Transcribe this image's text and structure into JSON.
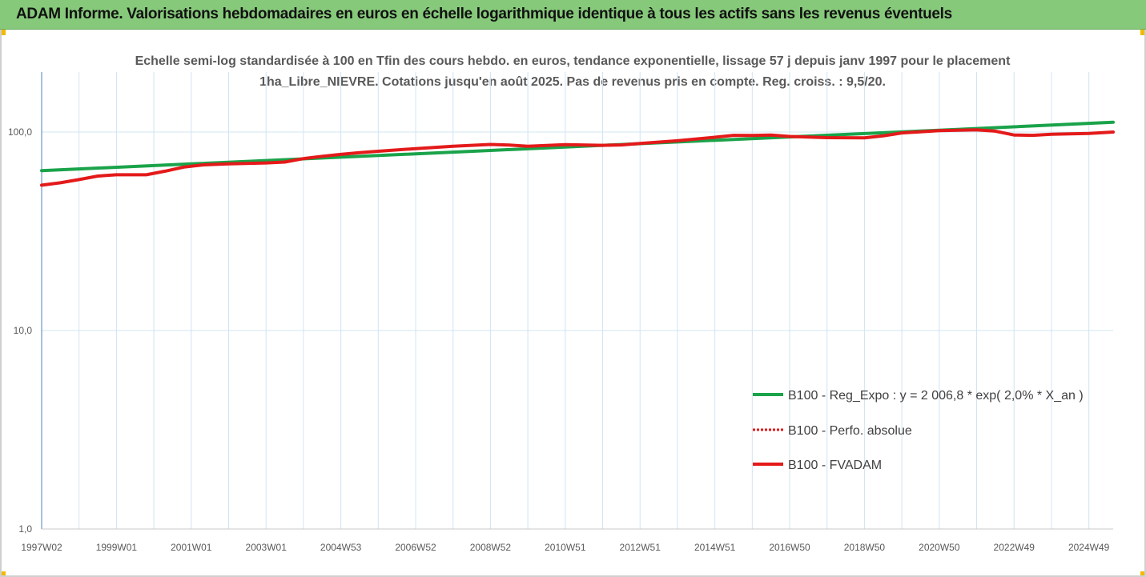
{
  "header": {
    "title": "ADAM Informe. Valorisations hebdomadaires en euros en échelle logarithmique identique à tous les actifs sans les revenus éventuels"
  },
  "colors": {
    "header_bg": "#86c97a",
    "green": "#1aa34a",
    "red": "#e41a1a",
    "grid": "#d0e4f2",
    "corner": "#f2b900"
  },
  "chart_data": {
    "type": "line",
    "title": "Echelle semi-log standardisée à 100 en Tfin des cours hebdo. en euros, tendance exponentielle, lissage 57 j depuis janv 1997 pour le placement 1ha_Libre_NIEVRE. Cotations jusqu'en août 2025. Pas de revenus pris en compte. Reg. croiss. : 9,5/20.",
    "y_scale": "log",
    "ylim": [
      1,
      200
    ],
    "y_ticks": [
      {
        "value": 1,
        "label": "1,0"
      },
      {
        "value": 10,
        "label": "10,0"
      },
      {
        "value": 100,
        "label": "100,0"
      }
    ],
    "x_range": [
      1997.0,
      2025.65
    ],
    "x_ticks": [
      {
        "x": 1997.0,
        "label": "1997W02"
      },
      {
        "x": 1999.0,
        "label": "1999W01"
      },
      {
        "x": 2001.0,
        "label": "2001W01"
      },
      {
        "x": 2003.0,
        "label": "2003W01"
      },
      {
        "x": 2005.0,
        "label": "2004W53"
      },
      {
        "x": 2007.0,
        "label": "2006W52"
      },
      {
        "x": 2009.0,
        "label": "2008W52"
      },
      {
        "x": 2011.0,
        "label": "2010W51"
      },
      {
        "x": 2013.0,
        "label": "2012W51"
      },
      {
        "x": 2015.0,
        "label": "2014W51"
      },
      {
        "x": 2017.0,
        "label": "2016W50"
      },
      {
        "x": 2019.0,
        "label": "2018W50"
      },
      {
        "x": 2021.0,
        "label": "2020W50"
      },
      {
        "x": 2023.0,
        "label": "2022W49"
      },
      {
        "x": 2025.0,
        "label": "2024W49"
      }
    ],
    "series": [
      {
        "name": "B100 - Reg_Expo : y = 2 006,8 * exp( 2,0% *  X_an )",
        "color": "#1aa34a",
        "style": "solid",
        "points": [
          [
            1997.0,
            63.9
          ],
          [
            2001.0,
            69.1
          ],
          [
            2005.0,
            74.7
          ],
          [
            2009.0,
            80.8
          ],
          [
            2013.0,
            87.4
          ],
          [
            2017.0,
            94.5
          ],
          [
            2021.0,
            102.2
          ],
          [
            2025.65,
            112.0
          ]
        ]
      },
      {
        "name": "B100 - Perfo. absolue",
        "color": "#e41a1a",
        "style": "dotted",
        "points": []
      },
      {
        "name": "B100 - FVADAM",
        "color": "#e41a1a",
        "style": "solid",
        "points": [
          [
            1997.0,
            54.0
          ],
          [
            1997.5,
            55.5
          ],
          [
            1998.0,
            57.6
          ],
          [
            1998.5,
            60.0
          ],
          [
            1999.0,
            60.9
          ],
          [
            1999.8,
            60.9
          ],
          [
            2000.3,
            63.5
          ],
          [
            2000.8,
            66.6
          ],
          [
            2001.3,
            68.3
          ],
          [
            2002.0,
            69.1
          ],
          [
            2003.0,
            69.9
          ],
          [
            2003.5,
            70.6
          ],
          [
            2004.0,
            73.5
          ],
          [
            2004.5,
            75.5
          ],
          [
            2005.0,
            77.2
          ],
          [
            2005.5,
            78.7
          ],
          [
            2006.0,
            80.0
          ],
          [
            2007.0,
            82.5
          ],
          [
            2008.0,
            84.8
          ],
          [
            2009.0,
            86.6
          ],
          [
            2009.5,
            86.0
          ],
          [
            2010.0,
            84.8
          ],
          [
            2011.0,
            86.4
          ],
          [
            2012.0,
            85.7
          ],
          [
            2012.5,
            86.1
          ],
          [
            2013.0,
            87.6
          ],
          [
            2014.0,
            90.4
          ],
          [
            2015.0,
            94.1
          ],
          [
            2015.5,
            96.3
          ],
          [
            2016.0,
            96.2
          ],
          [
            2016.5,
            96.5
          ],
          [
            2017.0,
            95.0
          ],
          [
            2018.0,
            93.7
          ],
          [
            2019.0,
            93.5
          ],
          [
            2019.5,
            95.6
          ],
          [
            2020.0,
            99.0
          ],
          [
            2021.0,
            101.6
          ],
          [
            2022.0,
            102.5
          ],
          [
            2022.5,
            101.0
          ],
          [
            2023.0,
            96.6
          ],
          [
            2023.5,
            96.3
          ],
          [
            2024.0,
            97.5
          ],
          [
            2025.0,
            98.4
          ],
          [
            2025.65,
            100.0
          ]
        ]
      }
    ],
    "legend": {
      "position": "right",
      "entries": [
        "B100 - Reg_Expo : y = 2 006,8 * exp( 2,0% *  X_an )",
        "B100 - Perfo. absolue",
        "B100 - FVADAM"
      ]
    },
    "grid": {
      "vertical": true,
      "horizontal": true
    }
  }
}
